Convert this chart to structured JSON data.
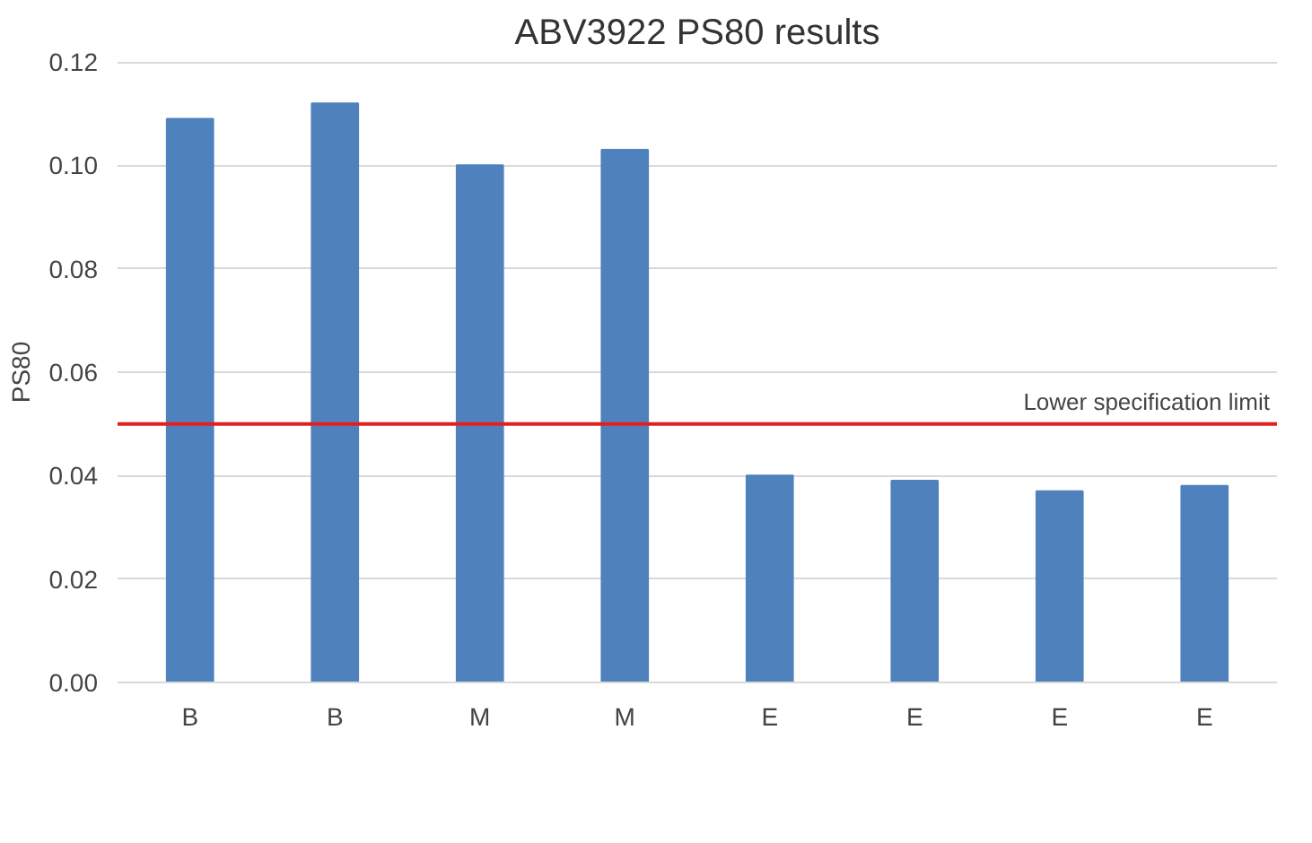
{
  "chart_data": {
    "type": "bar",
    "title": "ABV3922 PS80 results",
    "ylabel": "PS80",
    "categories": [
      "B",
      "B",
      "M",
      "M",
      "E",
      "E",
      "E",
      "E"
    ],
    "values": [
      0.109,
      0.112,
      0.1,
      0.103,
      0.04,
      0.039,
      0.037,
      0.038
    ],
    "color": "#4f81bd",
    "ylim": [
      0,
      0.12
    ],
    "yticks": [
      {
        "value": 0,
        "label": "0.00"
      },
      {
        "value": 0.02,
        "label": "0.02"
      },
      {
        "value": 0.04,
        "label": "0.04"
      },
      {
        "value": 0.06,
        "label": "0.06"
      },
      {
        "value": 0.08,
        "label": "0.08"
      },
      {
        "value": 0.1,
        "label": "0.10"
      },
      {
        "value": 0.12,
        "label": "0.12"
      }
    ],
    "grid": "y",
    "ref_lines": [
      {
        "axis": "y",
        "value": 0.05,
        "label": "Lower specification limit",
        "color": "#e02020"
      }
    ]
  }
}
